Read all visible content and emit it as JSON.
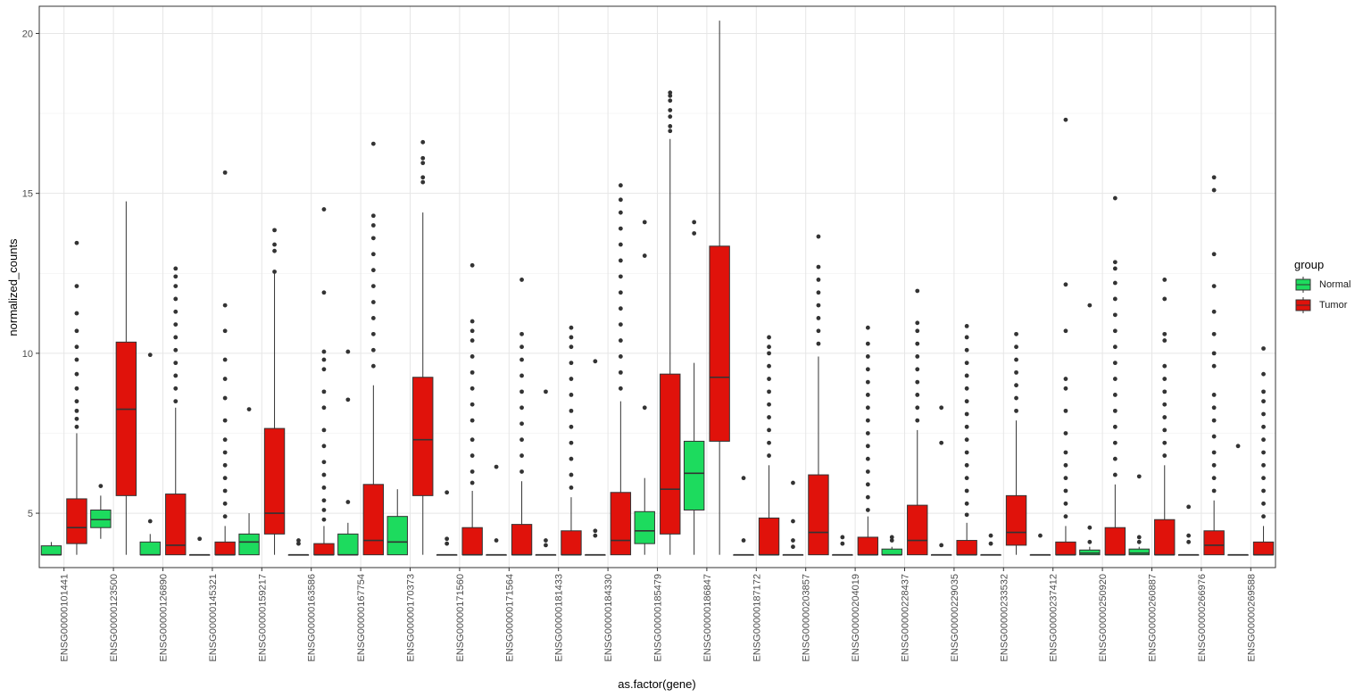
{
  "chart_data": {
    "type": "boxplot",
    "xlabel": "as.factor(gene)",
    "ylabel": "normalized_counts",
    "ylim": [
      3.3,
      20.85
    ],
    "yticks": [
      5,
      10,
      15,
      20
    ],
    "ytick_labels": [
      "5",
      "10",
      "15",
      "20"
    ],
    "grid": true,
    "legend": {
      "title": "group",
      "placement": "right",
      "entries": [
        "Normal",
        "Tumor"
      ]
    },
    "colors": {
      "Normal": "#1ddb5e",
      "Tumor": "#e0120b",
      "outline": "#333333",
      "outlier": "#333333"
    },
    "categories": [
      "ENSG00000101441",
      "ENSG00000123500",
      "ENSG00000126890",
      "ENSG00000145321",
      "ENSG00000159217",
      "ENSG00000163586",
      "ENSG00000167754",
      "ENSG00000170373",
      "ENSG00000171560",
      "ENSG00000171564",
      "ENSG00000181433",
      "ENSG00000184330",
      "ENSG00000185479",
      "ENSG00000186847",
      "ENSG00000187172",
      "ENSG00000203857",
      "ENSG00000204019",
      "ENSG00000228437",
      "ENSG00000229035",
      "ENSG00000233532",
      "ENSG00000237412",
      "ENSG00000250920",
      "ENSG00000260887",
      "ENSG00000266976",
      "ENSG00000269588"
    ],
    "series": [
      {
        "name": "Normal",
        "boxes": [
          {
            "min": 3.7,
            "q1": 3.7,
            "median": 3.7,
            "q3": 3.98,
            "max": 4.1,
            "outliers": []
          },
          {
            "min": 4.2,
            "q1": 4.55,
            "median": 4.8,
            "q3": 5.1,
            "max": 5.55,
            "outliers": [
              5.85
            ]
          },
          {
            "min": 3.7,
            "q1": 3.7,
            "median": 3.7,
            "q3": 4.1,
            "max": 4.35,
            "outliers": [
              4.75,
              9.95
            ]
          },
          {
            "min": 3.7,
            "q1": 3.7,
            "median": 3.7,
            "q3": 3.7,
            "max": 3.7,
            "outliers": [
              4.2
            ]
          },
          {
            "min": 3.7,
            "q1": 3.7,
            "median": 4.1,
            "q3": 4.35,
            "max": 5.0,
            "outliers": [
              8.25
            ]
          },
          {
            "min": 3.7,
            "q1": 3.7,
            "median": 3.7,
            "q3": 3.7,
            "max": 3.7,
            "outliers": [
              4.05,
              4.15
            ]
          },
          {
            "min": 3.7,
            "q1": 3.7,
            "median": 3.7,
            "q3": 4.35,
            "max": 4.7,
            "outliers": [
              5.35,
              8.55,
              10.05
            ]
          },
          {
            "min": 3.7,
            "q1": 3.7,
            "median": 4.1,
            "q3": 4.9,
            "max": 5.75,
            "outliers": []
          },
          {
            "min": 3.7,
            "q1": 3.7,
            "median": 3.7,
            "q3": 3.7,
            "max": 3.7,
            "outliers": [
              4.05,
              4.2,
              5.65
            ]
          },
          {
            "min": 3.7,
            "q1": 3.7,
            "median": 3.7,
            "q3": 3.7,
            "max": 3.7,
            "outliers": [
              4.15,
              6.45
            ]
          },
          {
            "min": 3.7,
            "q1": 3.7,
            "median": 3.7,
            "q3": 3.7,
            "max": 3.7,
            "outliers": [
              4.0,
              4.15,
              8.8
            ]
          },
          {
            "min": 3.7,
            "q1": 3.7,
            "median": 3.7,
            "q3": 3.7,
            "max": 3.7,
            "outliers": [
              4.3,
              4.45,
              9.75
            ]
          },
          {
            "min": 3.7,
            "q1": 4.05,
            "median": 4.45,
            "q3": 5.05,
            "max": 6.1,
            "outliers": [
              8.3,
              13.05,
              14.1
            ]
          },
          {
            "min": 3.7,
            "q1": 5.1,
            "median": 6.25,
            "q3": 7.25,
            "max": 9.7,
            "outliers": [
              13.75,
              14.1
            ]
          },
          {
            "min": 3.7,
            "q1": 3.7,
            "median": 3.7,
            "q3": 3.7,
            "max": 3.7,
            "outliers": [
              4.15,
              6.1
            ]
          },
          {
            "min": 3.7,
            "q1": 3.7,
            "median": 3.7,
            "q3": 3.7,
            "max": 3.7,
            "outliers": [
              3.95,
              4.15,
              4.75,
              5.95
            ]
          },
          {
            "min": 3.7,
            "q1": 3.7,
            "median": 3.7,
            "q3": 3.7,
            "max": 3.7,
            "outliers": [
              4.05,
              4.25
            ]
          },
          {
            "min": 3.7,
            "q1": 3.7,
            "median": 3.7,
            "q3": 3.88,
            "max": 3.95,
            "outliers": [
              4.15,
              4.25
            ]
          },
          {
            "min": 3.7,
            "q1": 3.7,
            "median": 3.7,
            "q3": 3.7,
            "max": 3.7,
            "outliers": [
              4.0,
              7.2,
              8.3
            ]
          },
          {
            "min": 3.7,
            "q1": 3.7,
            "median": 3.7,
            "q3": 3.7,
            "max": 3.7,
            "outliers": [
              4.05,
              4.3
            ]
          },
          {
            "min": 3.7,
            "q1": 3.7,
            "median": 3.7,
            "q3": 3.7,
            "max": 3.7,
            "outliers": [
              4.3
            ]
          },
          {
            "min": 3.7,
            "q1": 3.7,
            "median": 3.75,
            "q3": 3.85,
            "max": 3.95,
            "outliers": [
              4.1,
              4.55,
              11.5
            ]
          },
          {
            "min": 3.7,
            "q1": 3.7,
            "median": 3.75,
            "q3": 3.88,
            "max": 3.95,
            "outliers": [
              4.1,
              4.25,
              6.15
            ]
          },
          {
            "min": 3.7,
            "q1": 3.7,
            "median": 3.7,
            "q3": 3.7,
            "max": 3.7,
            "outliers": [
              4.1,
              4.3,
              5.2
            ]
          },
          {
            "min": 3.7,
            "q1": 3.7,
            "median": 3.7,
            "q3": 3.7,
            "max": 3.7,
            "outliers": [
              7.1
            ]
          }
        ]
      },
      {
        "name": "Tumor",
        "boxes": [
          {
            "min": 3.7,
            "q1": 4.05,
            "median": 4.55,
            "q3": 5.45,
            "max": 7.5,
            "outliers": [
              7.7,
              7.95,
              8.2,
              8.5,
              8.9,
              9.35,
              9.8,
              10.2,
              10.7,
              11.25,
              12.1,
              13.45
            ]
          },
          {
            "min": 3.7,
            "q1": 5.55,
            "median": 8.25,
            "q3": 10.35,
            "max": 14.75,
            "outliers": []
          },
          {
            "min": 3.7,
            "q1": 3.7,
            "median": 4.0,
            "q3": 5.6,
            "max": 8.3,
            "outliers": [
              8.5,
              8.9,
              9.3,
              9.7,
              10.1,
              10.5,
              10.9,
              11.3,
              11.7,
              12.1,
              12.4,
              12.65
            ]
          },
          {
            "min": 3.7,
            "q1": 3.7,
            "median": 3.7,
            "q3": 4.1,
            "max": 4.6,
            "outliers": [
              4.9,
              5.3,
              5.7,
              6.1,
              6.5,
              6.9,
              7.3,
              7.9,
              8.6,
              9.2,
              9.8,
              10.7,
              11.5,
              15.65
            ]
          },
          {
            "min": 3.7,
            "q1": 4.35,
            "median": 5.0,
            "q3": 7.65,
            "max": 12.5,
            "outliers": [
              12.55,
              13.2,
              13.4,
              13.85
            ]
          },
          {
            "min": 3.7,
            "q1": 3.7,
            "median": 3.7,
            "q3": 4.05,
            "max": 4.6,
            "outliers": [
              4.8,
              5.1,
              5.4,
              5.8,
              6.2,
              6.6,
              7.1,
              7.6,
              8.3,
              8.8,
              9.5,
              9.8,
              10.05,
              11.9,
              14.5
            ]
          },
          {
            "min": 3.7,
            "q1": 3.7,
            "median": 4.15,
            "q3": 5.9,
            "max": 9.0,
            "outliers": [
              9.6,
              10.1,
              10.6,
              11.1,
              11.6,
              12.1,
              12.6,
              13.1,
              13.6,
              14.0,
              14.3,
              16.55
            ]
          },
          {
            "min": 3.7,
            "q1": 5.55,
            "median": 7.3,
            "q3": 9.25,
            "max": 14.4,
            "outliers": [
              15.35,
              15.5,
              15.95,
              16.1,
              16.6
            ]
          },
          {
            "min": 3.7,
            "q1": 3.7,
            "median": 3.7,
            "q3": 4.55,
            "max": 5.7,
            "outliers": [
              5.95,
              6.3,
              6.8,
              7.3,
              7.9,
              8.4,
              8.9,
              9.4,
              9.9,
              10.4,
              10.7,
              11.0,
              12.75
            ]
          },
          {
            "min": 3.7,
            "q1": 3.7,
            "median": 3.7,
            "q3": 4.65,
            "max": 6.0,
            "outliers": [
              6.3,
              6.8,
              7.3,
              7.8,
              8.3,
              8.8,
              9.3,
              9.8,
              10.2,
              10.6,
              12.3
            ]
          },
          {
            "min": 3.7,
            "q1": 3.7,
            "median": 3.7,
            "q3": 4.45,
            "max": 5.5,
            "outliers": [
              5.8,
              6.2,
              6.7,
              7.2,
              7.7,
              8.2,
              8.7,
              9.2,
              9.7,
              10.2,
              10.5,
              10.8
            ]
          },
          {
            "min": 3.7,
            "q1": 3.7,
            "median": 4.15,
            "q3": 5.65,
            "max": 8.5,
            "outliers": [
              8.9,
              9.4,
              9.9,
              10.4,
              10.9,
              11.4,
              11.9,
              12.4,
              12.9,
              13.4,
              13.9,
              14.4,
              14.8,
              15.25
            ]
          },
          {
            "min": 3.7,
            "q1": 4.35,
            "median": 5.75,
            "q3": 9.35,
            "max": 16.7,
            "outliers": [
              16.95,
              17.1,
              17.4,
              17.6,
              17.9,
              18.05,
              18.15
            ]
          },
          {
            "min": 3.7,
            "q1": 7.25,
            "median": 9.25,
            "q3": 13.35,
            "max": 20.4,
            "outliers": []
          },
          {
            "min": 3.7,
            "q1": 3.7,
            "median": 3.7,
            "q3": 4.85,
            "max": 6.5,
            "outliers": [
              6.8,
              7.2,
              7.6,
              8.0,
              8.4,
              8.8,
              9.2,
              9.6,
              10.0,
              10.2,
              10.5
            ]
          },
          {
            "min": 3.7,
            "q1": 3.7,
            "median": 4.4,
            "q3": 6.2,
            "max": 9.9,
            "outliers": [
              10.3,
              10.7,
              11.1,
              11.5,
              11.9,
              12.3,
              12.7,
              13.65
            ]
          },
          {
            "min": 3.7,
            "q1": 3.7,
            "median": 3.7,
            "q3": 4.25,
            "max": 4.9,
            "outliers": [
              5.1,
              5.5,
              5.9,
              6.3,
              6.7,
              7.1,
              7.5,
              7.9,
              8.3,
              8.7,
              9.1,
              9.5,
              9.9,
              10.3,
              10.8
            ]
          },
          {
            "min": 3.7,
            "q1": 3.7,
            "median": 4.15,
            "q3": 5.25,
            "max": 7.6,
            "outliers": [
              7.9,
              8.3,
              8.7,
              9.1,
              9.5,
              9.9,
              10.3,
              10.7,
              10.95,
              11.95
            ]
          },
          {
            "min": 3.7,
            "q1": 3.7,
            "median": 3.7,
            "q3": 4.15,
            "max": 4.7,
            "outliers": [
              4.95,
              5.3,
              5.7,
              6.1,
              6.5,
              6.9,
              7.3,
              7.7,
              8.1,
              8.5,
              8.9,
              9.3,
              9.7,
              10.1,
              10.5,
              10.85
            ]
          },
          {
            "min": 3.7,
            "q1": 4.0,
            "median": 4.4,
            "q3": 5.55,
            "max": 7.9,
            "outliers": [
              8.2,
              8.6,
              9.0,
              9.4,
              9.8,
              10.2,
              10.6
            ]
          },
          {
            "min": 3.7,
            "q1": 3.7,
            "median": 3.7,
            "q3": 4.1,
            "max": 4.6,
            "outliers": [
              4.9,
              5.3,
              5.7,
              6.1,
              6.5,
              6.9,
              7.5,
              8.2,
              8.9,
              9.2,
              10.7,
              12.15,
              17.3
            ]
          },
          {
            "min": 3.7,
            "q1": 3.7,
            "median": 3.7,
            "q3": 4.55,
            "max": 5.9,
            "outliers": [
              6.2,
              6.7,
              7.2,
              7.7,
              8.2,
              8.7,
              9.2,
              9.7,
              10.2,
              10.7,
              11.2,
              11.7,
              12.2,
              12.65,
              12.85,
              14.85
            ]
          },
          {
            "min": 3.7,
            "q1": 3.7,
            "median": 3.7,
            "q3": 4.8,
            "max": 6.5,
            "outliers": [
              6.8,
              7.2,
              7.6,
              8.0,
              8.4,
              8.8,
              9.2,
              9.6,
              10.4,
              10.6,
              11.7,
              12.3
            ]
          },
          {
            "min": 3.7,
            "q1": 3.7,
            "median": 4.0,
            "q3": 4.45,
            "max": 5.4,
            "outliers": [
              5.7,
              6.1,
              6.5,
              6.9,
              7.4,
              7.9,
              8.3,
              8.7,
              9.6,
              10.0,
              10.6,
              11.3,
              12.1,
              13.1,
              15.1,
              15.5
            ]
          },
          {
            "min": 3.7,
            "q1": 3.7,
            "median": 3.7,
            "q3": 4.1,
            "max": 4.6,
            "outliers": [
              4.9,
              5.3,
              5.7,
              6.1,
              6.5,
              6.9,
              7.3,
              7.7,
              8.1,
              8.5,
              8.8,
              9.35,
              10.15
            ]
          }
        ]
      }
    ]
  }
}
